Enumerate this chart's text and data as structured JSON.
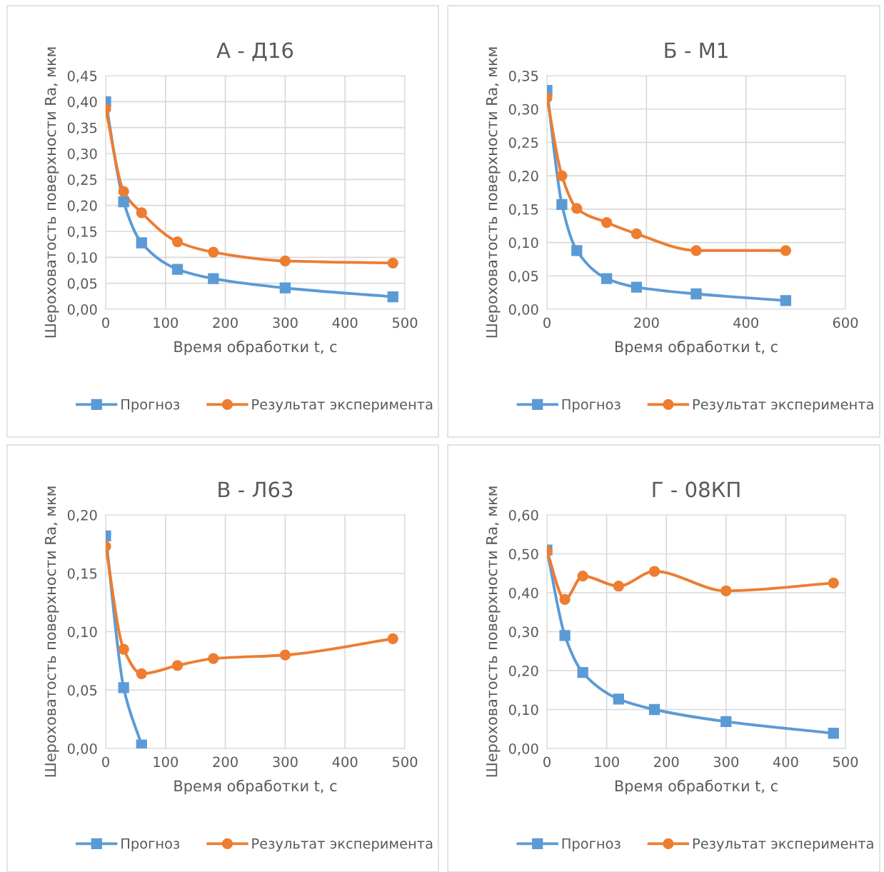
{
  "chart_data": [
    {
      "type": "line",
      "title": "А - Д16",
      "xlabel": "Время обработки t, с",
      "ylabel": "Шероховатость поверхности Ra, мкм",
      "grid": true,
      "legend": "bottom",
      "xlim": [
        0,
        500
      ],
      "xticks": [
        0,
        100,
        200,
        300,
        400,
        500
      ],
      "ylim": [
        0,
        0.45
      ],
      "yticks": [
        {
          "value": 0,
          "label": "0,00"
        },
        {
          "value": 0.05,
          "label": "0,05"
        },
        {
          "value": 0.1,
          "label": "0,10"
        },
        {
          "value": 0.15,
          "label": "0,15"
        },
        {
          "value": 0.2,
          "label": "0,20"
        },
        {
          "value": 0.25,
          "label": "0,25"
        },
        {
          "value": 0.3,
          "label": "0,30"
        },
        {
          "value": 0.35,
          "label": "0,35"
        },
        {
          "value": 0.4,
          "label": "0,40"
        },
        {
          "value": 0.45,
          "label": "0,45"
        }
      ],
      "series": [
        {
          "name": "Прогноз",
          "color": "#5b9bd5",
          "marker": "square",
          "x": [
            0,
            30,
            60,
            120,
            180,
            300,
            480
          ],
          "values": [
            0.4,
            0.207,
            0.128,
            0.077,
            0.059,
            0.041,
            0.024
          ]
        },
        {
          "name": "Результат эксперимента",
          "color": "#ed7d31",
          "marker": "circle",
          "x": [
            0,
            30,
            60,
            120,
            180,
            300,
            480
          ],
          "values": [
            0.386,
            0.227,
            0.186,
            0.13,
            0.11,
            0.093,
            0.089
          ]
        }
      ]
    },
    {
      "type": "line",
      "title": "Б - М1",
      "xlabel": "Время обработки t, с",
      "ylabel": "Шероховатость поверхности Ra, мкм",
      "grid": true,
      "legend": "bottom",
      "xlim": [
        0,
        600
      ],
      "xticks": [
        0,
        200,
        400,
        600
      ],
      "ylim": [
        0,
        0.35
      ],
      "yticks": [
        {
          "value": 0,
          "label": "0,00"
        },
        {
          "value": 0.05,
          "label": "0,05"
        },
        {
          "value": 0.1,
          "label": "0,10"
        },
        {
          "value": 0.15,
          "label": "0,15"
        },
        {
          "value": 0.2,
          "label": "0,20"
        },
        {
          "value": 0.25,
          "label": "0,25"
        },
        {
          "value": 0.3,
          "label": "0,30"
        },
        {
          "value": 0.35,
          "label": "0,35"
        }
      ],
      "series": [
        {
          "name": "Прогноз",
          "color": "#5b9bd5",
          "marker": "square",
          "x": [
            0,
            30,
            60,
            120,
            180,
            300,
            480
          ],
          "values": [
            0.328,
            0.157,
            0.088,
            0.046,
            0.033,
            0.023,
            0.013
          ]
        },
        {
          "name": "Результат эксперимента",
          "color": "#ed7d31",
          "marker": "circle",
          "x": [
            0,
            30,
            60,
            120,
            180,
            300,
            480
          ],
          "values": [
            0.317,
            0.2,
            0.151,
            0.13,
            0.113,
            0.088,
            0.088
          ]
        }
      ]
    },
    {
      "type": "line",
      "title": "В - Л63",
      "xlabel": "Время обработки t, с",
      "ylabel": "Шероховатость поверхности Ra, мкм",
      "grid": true,
      "legend": "bottom",
      "xlim": [
        0,
        500
      ],
      "xticks": [
        0,
        100,
        200,
        300,
        400,
        500
      ],
      "ylim": [
        0,
        0.2
      ],
      "yticks": [
        {
          "value": 0,
          "label": "0,00"
        },
        {
          "value": 0.05,
          "label": "0,05"
        },
        {
          "value": 0.1,
          "label": "0,10"
        },
        {
          "value": 0.15,
          "label": "0,15"
        },
        {
          "value": 0.2,
          "label": "0,20"
        }
      ],
      "series": [
        {
          "name": "Прогноз",
          "color": "#5b9bd5",
          "marker": "square",
          "x": [
            0,
            30,
            60
          ],
          "values": [
            0.182,
            0.052,
            0.003
          ]
        },
        {
          "name": "Результат эксперимента",
          "color": "#ed7d31",
          "marker": "circle",
          "x": [
            0,
            30,
            60,
            120,
            180,
            300,
            480
          ],
          "values": [
            0.173,
            0.085,
            0.064,
            0.071,
            0.077,
            0.08,
            0.094
          ]
        }
      ]
    },
    {
      "type": "line",
      "title": "Г - 08КП",
      "xlabel": "Время обработки t, с",
      "ylabel": "Шероховатость поверхности Ra, мкм",
      "grid": true,
      "legend": "bottom",
      "xlim": [
        0,
        500
      ],
      "xticks": [
        0,
        100,
        200,
        300,
        400,
        500
      ],
      "ylim": [
        0,
        0.6
      ],
      "yticks": [
        {
          "value": 0,
          "label": "0,00"
        },
        {
          "value": 0.1,
          "label": "0,10"
        },
        {
          "value": 0.2,
          "label": "0,20"
        },
        {
          "value": 0.3,
          "label": "0,30"
        },
        {
          "value": 0.4,
          "label": "0,40"
        },
        {
          "value": 0.5,
          "label": "0,50"
        },
        {
          "value": 0.6,
          "label": "0,60"
        }
      ],
      "series": [
        {
          "name": "Прогноз",
          "color": "#5b9bd5",
          "marker": "square",
          "x": [
            0,
            30,
            60,
            120,
            180,
            300,
            480
          ],
          "values": [
            0.51,
            0.29,
            0.195,
            0.127,
            0.1,
            0.069,
            0.039
          ]
        },
        {
          "name": "Результат эксперимента",
          "color": "#ed7d31",
          "marker": "circle",
          "x": [
            0,
            30,
            60,
            120,
            180,
            300,
            480
          ],
          "values": [
            0.507,
            0.383,
            0.443,
            0.417,
            0.455,
            0.405,
            0.425
          ]
        }
      ]
    }
  ]
}
